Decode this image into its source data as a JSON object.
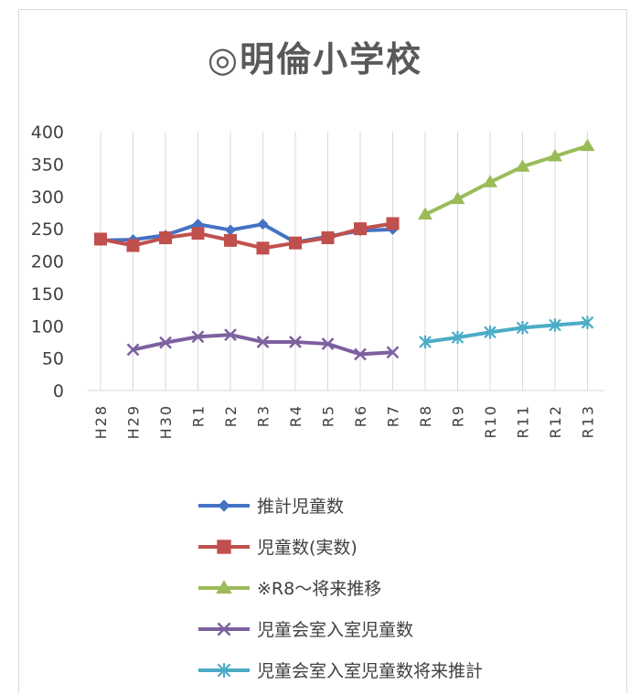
{
  "chart_data": {
    "type": "line",
    "title": "◎明倫小学校",
    "categories": [
      "H28",
      "H29",
      "H30",
      "R1",
      "R2",
      "R3",
      "R4",
      "R5",
      "R6",
      "R7",
      "R8",
      "R9",
      "R10",
      "R11",
      "R12",
      "R13"
    ],
    "y_ticks": [
      0,
      50,
      100,
      150,
      200,
      250,
      300,
      350,
      400
    ],
    "ylim": [
      0,
      400
    ],
    "grid": "vertical",
    "legend_position": "bottom",
    "series": [
      {
        "name": "推計児童数",
        "color": "#4472c4",
        "marker": "diamond",
        "values": [
          232,
          233,
          240,
          257,
          248,
          257,
          229,
          238,
          247,
          249,
          null,
          null,
          null,
          null,
          null,
          null
        ]
      },
      {
        "name": "児童数(実数)",
        "color": "#c0504d",
        "marker": "square",
        "values": [
          234,
          224,
          236,
          243,
          232,
          220,
          228,
          236,
          250,
          258,
          null,
          null,
          null,
          null,
          null,
          null
        ]
      },
      {
        "name": "※R8～将来推移",
        "color": "#9bbb59",
        "marker": "triangle",
        "values": [
          null,
          null,
          null,
          null,
          null,
          null,
          null,
          null,
          null,
          null,
          272,
          296,
          322,
          346,
          362,
          378
        ]
      },
      {
        "name": "児童会室入室児童数",
        "color": "#7d60a0",
        "marker": "x",
        "values": [
          null,
          63,
          74,
          83,
          86,
          75,
          75,
          72,
          56,
          59,
          null,
          null,
          null,
          null,
          null,
          null
        ]
      },
      {
        "name": "児童会室入室児童数将来推計",
        "color": "#4bacc6",
        "marker": "star",
        "values": [
          null,
          null,
          null,
          null,
          null,
          null,
          null,
          null,
          null,
          null,
          75,
          82,
          90,
          97,
          101,
          105
        ]
      }
    ]
  }
}
